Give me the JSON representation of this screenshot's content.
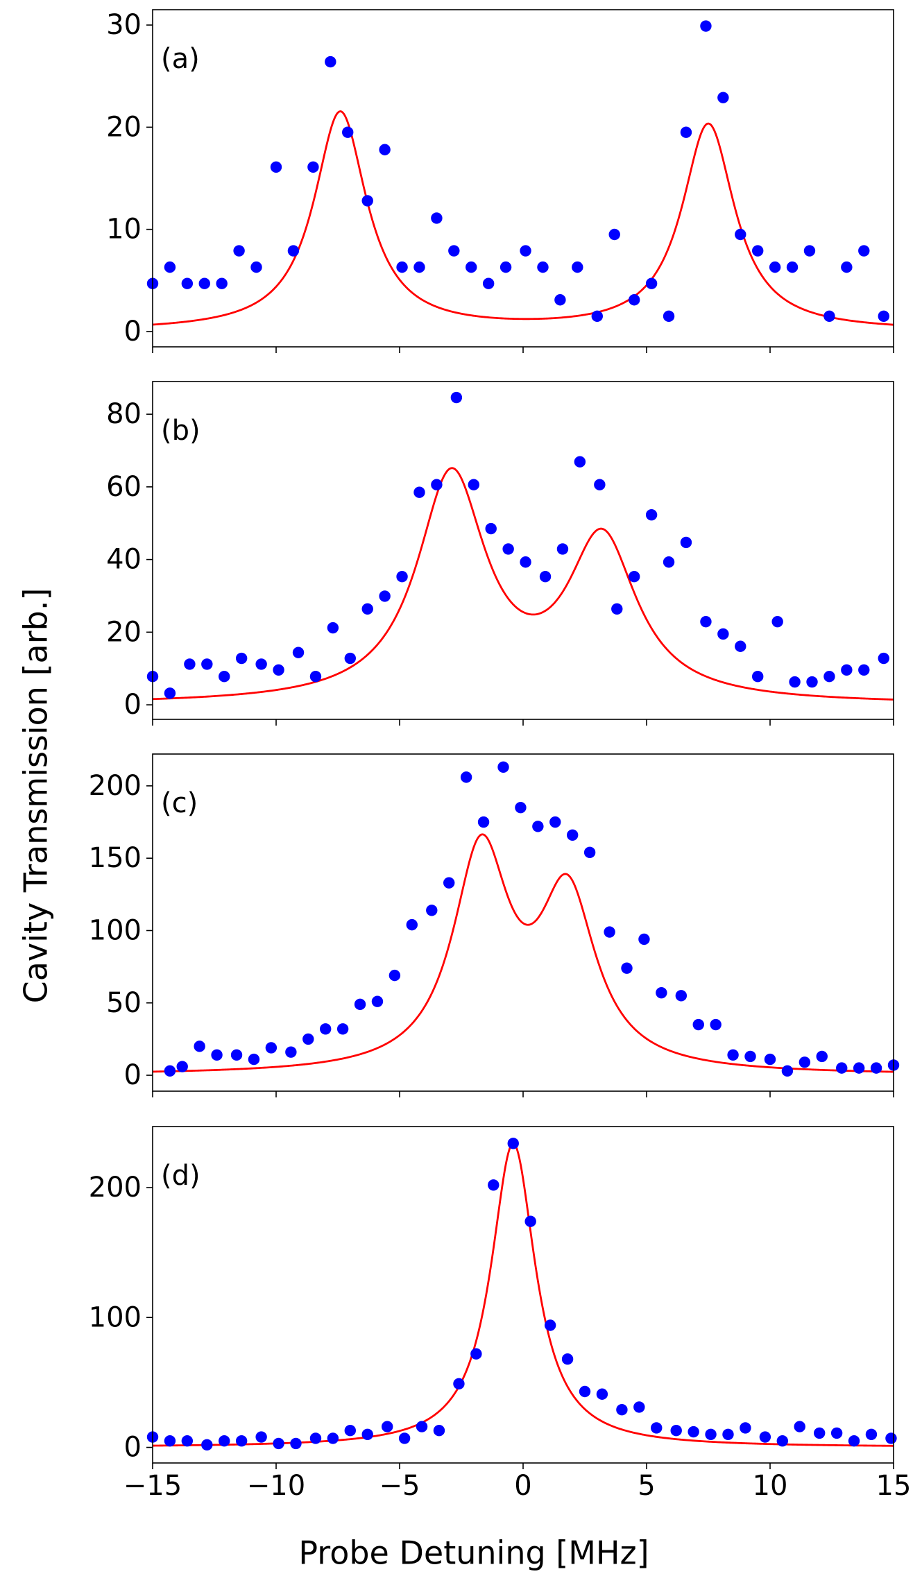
{
  "figure": {
    "ylabel": "Cavity Transmission [arb.]",
    "xlabel": "Probe Detuning [MHz]",
    "marker_color": "#0000ff",
    "fit_color": "#ff0000"
  },
  "chart_data": [
    {
      "type": "scatter",
      "panel_label": "(a)",
      "xlim": [
        -15,
        15
      ],
      "ylim": [
        -1.5,
        31.5
      ],
      "xticks": [
        -15,
        -10,
        -5,
        0,
        5,
        10,
        15
      ],
      "yticks": [
        0,
        10,
        20,
        30
      ],
      "ytick_labels": [
        "0",
        "10",
        "20",
        "30"
      ],
      "points": [
        [
          -15.0,
          4.7
        ],
        [
          -14.3,
          6.3
        ],
        [
          -13.6,
          4.7
        ],
        [
          -12.9,
          4.7
        ],
        [
          -12.2,
          4.7
        ],
        [
          -11.5,
          7.9
        ],
        [
          -10.8,
          6.3
        ],
        [
          -10.0,
          16.1
        ],
        [
          -9.3,
          7.9
        ],
        [
          -8.5,
          16.1
        ],
        [
          -7.8,
          26.4
        ],
        [
          -7.1,
          19.5
        ],
        [
          -6.3,
          12.8
        ],
        [
          -5.6,
          17.8
        ],
        [
          -4.9,
          6.3
        ],
        [
          -4.2,
          6.3
        ],
        [
          -3.5,
          11.1
        ],
        [
          -2.8,
          7.9
        ],
        [
          -2.1,
          6.3
        ],
        [
          -1.4,
          4.7
        ],
        [
          -0.7,
          6.3
        ],
        [
          0.1,
          7.9
        ],
        [
          0.8,
          6.3
        ],
        [
          1.5,
          3.1
        ],
        [
          2.2,
          6.3
        ],
        [
          3.0,
          1.5
        ],
        [
          3.7,
          9.5
        ],
        [
          4.5,
          3.1
        ],
        [
          5.2,
          4.7
        ],
        [
          5.9,
          1.5
        ],
        [
          6.6,
          19.5
        ],
        [
          7.4,
          29.9
        ],
        [
          8.1,
          22.9
        ],
        [
          8.8,
          9.5
        ],
        [
          9.5,
          7.9
        ],
        [
          10.2,
          6.3
        ],
        [
          10.9,
          6.3
        ],
        [
          11.6,
          7.9
        ],
        [
          12.4,
          1.5
        ],
        [
          13.1,
          6.3
        ],
        [
          13.8,
          7.9
        ],
        [
          14.6,
          1.5
        ]
      ],
      "fit": {
        "model": "double_lorentzian",
        "peaks": [
          {
            "center": -7.4,
            "hwhm": 1.3,
            "height": 21.4
          },
          {
            "center": 7.5,
            "hwhm": 1.3,
            "height": 20.2
          }
        ],
        "baseline": 0.0
      }
    },
    {
      "type": "scatter",
      "panel_label": "(b)",
      "xlim": [
        -15,
        15
      ],
      "ylim": [
        -4,
        89
      ],
      "xticks": [
        -15,
        -10,
        -5,
        0,
        5,
        10,
        15
      ],
      "yticks": [
        0,
        20,
        40,
        60,
        80
      ],
      "ytick_labels": [
        "0",
        "20",
        "40",
        "60",
        "80"
      ],
      "points": [
        [
          -15.0,
          7.8
        ],
        [
          -14.3,
          3.2
        ],
        [
          -13.5,
          11.2
        ],
        [
          -12.8,
          11.2
        ],
        [
          -12.1,
          7.8
        ],
        [
          -11.4,
          12.8
        ],
        [
          -10.6,
          11.2
        ],
        [
          -9.9,
          9.6
        ],
        [
          -9.1,
          14.4
        ],
        [
          -8.4,
          7.8
        ],
        [
          -7.7,
          21.2
        ],
        [
          -7.0,
          12.8
        ],
        [
          -6.3,
          26.4
        ],
        [
          -5.6,
          29.9
        ],
        [
          -4.9,
          35.3
        ],
        [
          -4.2,
          58.5
        ],
        [
          -3.5,
          60.6
        ],
        [
          -2.7,
          84.6
        ],
        [
          -2.0,
          60.6
        ],
        [
          -1.3,
          48.5
        ],
        [
          -0.6,
          42.9
        ],
        [
          0.1,
          39.3
        ],
        [
          0.9,
          35.3
        ],
        [
          1.6,
          42.9
        ],
        [
          2.3,
          66.9
        ],
        [
          3.1,
          60.6
        ],
        [
          3.8,
          26.4
        ],
        [
          4.5,
          35.3
        ],
        [
          5.2,
          52.3
        ],
        [
          5.9,
          39.3
        ],
        [
          6.6,
          44.7
        ],
        [
          7.4,
          22.9
        ],
        [
          8.1,
          19.5
        ],
        [
          8.8,
          16.1
        ],
        [
          9.5,
          7.8
        ],
        [
          10.3,
          22.9
        ],
        [
          11.0,
          6.3
        ],
        [
          11.7,
          6.3
        ],
        [
          12.4,
          7.8
        ],
        [
          13.1,
          9.6
        ],
        [
          13.8,
          9.6
        ],
        [
          14.6,
          12.8
        ]
      ],
      "fit": {
        "model": "double_lorentzian",
        "peaks": [
          {
            "center": -2.9,
            "hwhm": 1.7,
            "height": 62.0
          },
          {
            "center": 3.2,
            "hwhm": 1.7,
            "height": 44.0
          }
        ],
        "baseline": 0.0
      }
    },
    {
      "type": "scatter",
      "panel_label": "(c)",
      "xlim": [
        -15,
        15
      ],
      "ylim": [
        -11,
        222
      ],
      "xticks": [
        -15,
        -10,
        -5,
        0,
        5,
        10,
        15
      ],
      "yticks": [
        0,
        50,
        100,
        150,
        200
      ],
      "ytick_labels": [
        "0",
        "50",
        "100",
        "150",
        "200"
      ],
      "points": [
        [
          -14.3,
          3
        ],
        [
          -13.8,
          6
        ],
        [
          -13.1,
          20
        ],
        [
          -12.4,
          14
        ],
        [
          -11.6,
          14
        ],
        [
          -10.9,
          11
        ],
        [
          -10.2,
          19
        ],
        [
          -9.4,
          16
        ],
        [
          -8.7,
          25
        ],
        [
          -8.0,
          32
        ],
        [
          -7.3,
          32
        ],
        [
          -6.6,
          49
        ],
        [
          -5.9,
          51
        ],
        [
          -5.2,
          69
        ],
        [
          -4.5,
          104
        ],
        [
          -3.7,
          114
        ],
        [
          -3.0,
          133
        ],
        [
          -2.3,
          206
        ],
        [
          -1.6,
          175
        ],
        [
          -0.8,
          213
        ],
        [
          -0.1,
          185
        ],
        [
          0.6,
          172
        ],
        [
          1.3,
          175
        ],
        [
          2.0,
          166
        ],
        [
          2.7,
          154
        ],
        [
          3.5,
          99
        ],
        [
          4.2,
          74
        ],
        [
          4.9,
          94
        ],
        [
          5.6,
          57
        ],
        [
          6.4,
          55
        ],
        [
          7.1,
          35
        ],
        [
          7.8,
          35
        ],
        [
          8.5,
          14
        ],
        [
          9.2,
          13
        ],
        [
          10.0,
          11
        ],
        [
          10.7,
          3
        ],
        [
          11.4,
          9
        ],
        [
          12.1,
          13
        ],
        [
          12.9,
          5
        ],
        [
          13.6,
          5
        ],
        [
          14.3,
          5
        ],
        [
          15.0,
          7
        ]
      ],
      "fit": {
        "model": "double_lorentzian",
        "peaks": [
          {
            "center": -1.7,
            "hwhm": 1.4,
            "height": 150.0
          },
          {
            "center": 1.8,
            "hwhm": 1.4,
            "height": 118.0
          }
        ],
        "baseline": 0.0
      }
    },
    {
      "type": "scatter",
      "panel_label": "(d)",
      "xlim": [
        -15,
        15
      ],
      "ylim": [
        -12,
        247
      ],
      "xticks": [
        -15,
        -10,
        -5,
        0,
        5,
        10,
        15
      ],
      "xtick_labels": [
        "−15",
        "−10",
        "−5",
        "0",
        "5",
        "10",
        "15"
      ],
      "yticks": [
        0,
        100,
        200
      ],
      "ytick_labels": [
        "0",
        "100",
        "200"
      ],
      "points": [
        [
          -15.0,
          8
        ],
        [
          -14.3,
          5
        ],
        [
          -13.6,
          5
        ],
        [
          -12.8,
          2
        ],
        [
          -12.1,
          5
        ],
        [
          -11.4,
          5
        ],
        [
          -10.6,
          8
        ],
        [
          -9.9,
          3
        ],
        [
          -9.2,
          3
        ],
        [
          -8.4,
          7
        ],
        [
          -7.7,
          7
        ],
        [
          -7.0,
          13
        ],
        [
          -6.3,
          10
        ],
        [
          -5.5,
          16
        ],
        [
          -4.8,
          7
        ],
        [
          -4.1,
          16
        ],
        [
          -3.4,
          13
        ],
        [
          -2.6,
          49
        ],
        [
          -1.9,
          72
        ],
        [
          -1.2,
          202
        ],
        [
          -0.4,
          234
        ],
        [
          0.3,
          174
        ],
        [
          1.1,
          94
        ],
        [
          1.8,
          68
        ],
        [
          2.5,
          43
        ],
        [
          3.2,
          41
        ],
        [
          4.0,
          29
        ],
        [
          4.7,
          31
        ],
        [
          5.4,
          15
        ],
        [
          6.2,
          13
        ],
        [
          6.9,
          12
        ],
        [
          7.6,
          10
        ],
        [
          8.3,
          10
        ],
        [
          9.0,
          15
        ],
        [
          9.8,
          8
        ],
        [
          10.5,
          5
        ],
        [
          11.2,
          16
        ],
        [
          12.0,
          11
        ],
        [
          12.7,
          11
        ],
        [
          13.4,
          5
        ],
        [
          14.1,
          10
        ],
        [
          14.9,
          7
        ]
      ],
      "fit": {
        "model": "lorentzian",
        "peaks": [
          {
            "center": -0.4,
            "hwhm": 1.1,
            "height": 234.0
          }
        ],
        "baseline": 0.0
      }
    }
  ]
}
